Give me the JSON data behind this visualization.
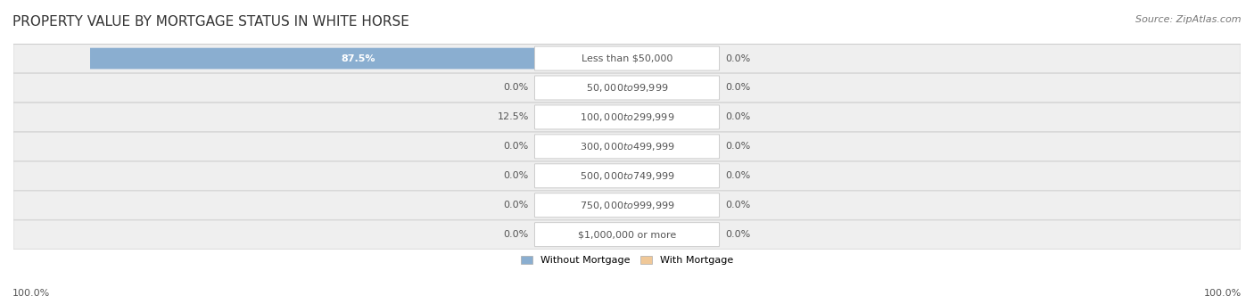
{
  "title": "PROPERTY VALUE BY MORTGAGE STATUS IN WHITE HORSE",
  "source": "Source: ZipAtlas.com",
  "categories": [
    "Less than $50,000",
    "$50,000 to $99,999",
    "$100,000 to $299,999",
    "$300,000 to $499,999",
    "$500,000 to $749,999",
    "$750,000 to $999,999",
    "$1,000,000 or more"
  ],
  "without_mortgage": [
    87.5,
    0.0,
    12.5,
    0.0,
    0.0,
    0.0,
    0.0
  ],
  "with_mortgage": [
    0.0,
    0.0,
    0.0,
    0.0,
    0.0,
    0.0,
    0.0
  ],
  "without_mortgage_color": "#8aaed0",
  "with_mortgage_color": "#f0c898",
  "label_color": "#555555",
  "title_color": "#333333",
  "title_fontsize": 11,
  "source_fontsize": 8,
  "axis_label_fontsize": 8,
  "bar_label_fontsize": 8,
  "category_fontsize": 8,
  "legend_labels": [
    "Without Mortgage",
    "With Mortgage"
  ],
  "bottom_left_label": "100.0%",
  "bottom_right_label": "100.0%"
}
